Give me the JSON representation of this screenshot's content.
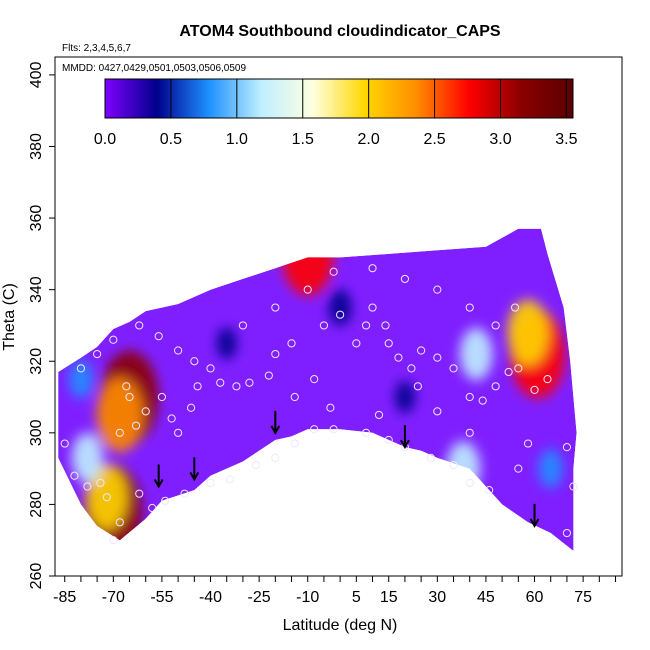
{
  "chart_data": {
    "type": "heatmap",
    "title": "ATOM4 Southbound cloudindicator_CAPS",
    "flights_note": "Flts: 2,3,4,5,6,7",
    "dates_note": "MMDD: 0427,0429,0501,0503,0506,0509",
    "xlabel": "Latitude (deg N)",
    "ylabel": "Theta (C)",
    "xlim": [
      -88,
      87
    ],
    "ylim": [
      260,
      405
    ],
    "x_ticks": [
      -85,
      -70,
      -55,
      -40,
      -25,
      -10,
      5,
      15,
      30,
      45,
      60,
      75
    ],
    "y_ticks": [
      260,
      280,
      300,
      320,
      340,
      360,
      380,
      400
    ],
    "colorbar": {
      "range": [
        0,
        3.55
      ],
      "ticks": [
        "0.0",
        "0.5",
        "1.0",
        "1.5",
        "2.0",
        "2.5",
        "3.0",
        "3.5"
      ],
      "colors": [
        "#7f00ff",
        "#00008b",
        "#1e90ff",
        "#bfefff",
        "#ffffe0",
        "#ffd700",
        "#ff8c00",
        "#ff0000",
        "#8b0000",
        "#5a0000"
      ]
    },
    "envelope_top": [
      [
        -87,
        317
      ],
      [
        -80,
        321
      ],
      [
        -75,
        324
      ],
      [
        -70,
        329
      ],
      [
        -65,
        331
      ],
      [
        -60,
        334
      ],
      [
        -50,
        336
      ],
      [
        -40,
        340
      ],
      [
        -30,
        343
      ],
      [
        -20,
        346
      ],
      [
        -10,
        349
      ],
      [
        0,
        349
      ],
      [
        15,
        350
      ],
      [
        30,
        351
      ],
      [
        45,
        352
      ],
      [
        55,
        357
      ],
      [
        62,
        357
      ],
      [
        64,
        350
      ],
      [
        69,
        335
      ],
      [
        71,
        320
      ],
      [
        73,
        300
      ],
      [
        72,
        290
      ],
      [
        72,
        267
      ]
    ],
    "envelope_bottom": [
      [
        72,
        267
      ],
      [
        65,
        272
      ],
      [
        58,
        275
      ],
      [
        50,
        280
      ],
      [
        45,
        285
      ],
      [
        40,
        290
      ],
      [
        30,
        293
      ],
      [
        25,
        295
      ],
      [
        20,
        296
      ],
      [
        10,
        300
      ],
      [
        0,
        301
      ],
      [
        -5,
        301
      ],
      [
        -10,
        301
      ],
      [
        -15,
        299
      ],
      [
        -20,
        298
      ],
      [
        -30,
        292
      ],
      [
        -40,
        288
      ],
      [
        -45,
        284
      ],
      [
        -55,
        281
      ],
      [
        -60,
        276
      ],
      [
        -68,
        270
      ],
      [
        -75,
        274
      ],
      [
        -80,
        280
      ],
      [
        -87,
        293
      ]
    ],
    "cells": [
      {
        "lat": -65,
        "theta": 310,
        "value": 3.0
      },
      {
        "lat": -68,
        "theta": 305,
        "value": 2.2
      },
      {
        "lat": -70,
        "theta": 278,
        "value": 3.0
      },
      {
        "lat": -72,
        "theta": 282,
        "value": 1.8
      },
      {
        "lat": 61,
        "theta": 322,
        "value": 2.8
      },
      {
        "lat": 58,
        "theta": 328,
        "value": 1.8
      },
      {
        "lat": -10,
        "theta": 350,
        "value": 2.6
      },
      {
        "lat": 42,
        "theta": 322,
        "value": 1.2
      },
      {
        "lat": 38,
        "theta": 290,
        "value": 1.3
      },
      {
        "lat": -78,
        "theta": 293,
        "value": 1.1
      },
      {
        "lat": -80,
        "theta": 315,
        "value": 0.6
      },
      {
        "lat": -35,
        "theta": 325,
        "value": 0.3
      },
      {
        "lat": 20,
        "theta": 310,
        "value": 0.3
      },
      {
        "lat": 0,
        "theta": 335,
        "value": 0.5
      },
      {
        "lat": 65,
        "theta": 290,
        "value": 0.6
      }
    ],
    "observations": [
      [
        -70,
        270
      ],
      [
        -68,
        275
      ],
      [
        -72,
        282
      ],
      [
        -74,
        286
      ],
      [
        -78,
        285
      ],
      [
        -82,
        288
      ],
      [
        -85,
        297
      ],
      [
        -65,
        310
      ],
      [
        -66,
        313
      ],
      [
        -68,
        300
      ],
      [
        -63,
        302
      ],
      [
        -60,
        306
      ],
      [
        -55,
        310
      ],
      [
        -52,
        304
      ],
      [
        -50,
        300
      ],
      [
        -46,
        307
      ],
      [
        -44,
        313
      ],
      [
        -40,
        318
      ],
      [
        -37,
        314
      ],
      [
        -32,
        313
      ],
      [
        -28,
        314
      ],
      [
        -22,
        316
      ],
      [
        -20,
        322
      ],
      [
        -15,
        325
      ],
      [
        -5,
        330
      ],
      [
        0,
        333
      ],
      [
        8,
        330
      ],
      [
        15,
        325
      ],
      [
        18,
        321
      ],
      [
        22,
        318
      ],
      [
        25,
        323
      ],
      [
        30,
        321
      ],
      [
        35,
        318
      ],
      [
        40,
        310
      ],
      [
        44,
        309
      ],
      [
        48,
        313
      ],
      [
        52,
        317
      ],
      [
        55,
        318
      ],
      [
        60,
        312
      ],
      [
        64,
        315
      ],
      [
        70,
        296
      ],
      [
        72,
        285
      ],
      [
        70,
        272
      ],
      [
        58,
        297
      ],
      [
        55,
        290
      ],
      [
        46,
        284
      ],
      [
        40,
        286
      ],
      [
        35,
        291
      ],
      [
        28,
        293
      ],
      [
        20,
        296
      ],
      [
        15,
        298
      ],
      [
        8,
        300
      ],
      [
        -2,
        301
      ],
      [
        -8,
        301
      ],
      [
        -14,
        297
      ],
      [
        -20,
        293
      ],
      [
        -26,
        291
      ],
      [
        -34,
        287
      ],
      [
        -40,
        286
      ],
      [
        -48,
        283
      ],
      [
        -54,
        281
      ],
      [
        -58,
        279
      ],
      [
        -62,
        283
      ],
      [
        -80,
        318
      ],
      [
        -75,
        322
      ],
      [
        -70,
        326
      ],
      [
        -62,
        330
      ],
      [
        -56,
        327
      ],
      [
        -50,
        323
      ],
      [
        -45,
        320
      ],
      [
        -30,
        330
      ],
      [
        -20,
        335
      ],
      [
        -10,
        340
      ],
      [
        -2,
        345
      ],
      [
        10,
        346
      ],
      [
        20,
        343
      ],
      [
        30,
        340
      ],
      [
        40,
        335
      ],
      [
        48,
        330
      ],
      [
        54,
        335
      ],
      [
        10,
        335
      ],
      [
        14,
        330
      ],
      [
        5,
        325
      ],
      [
        -8,
        315
      ],
      [
        -14,
        310
      ],
      [
        -3,
        307
      ],
      [
        12,
        305
      ],
      [
        24,
        313
      ],
      [
        30,
        306
      ],
      [
        40,
        300
      ]
    ],
    "arrows": [
      [
        -56,
        285
      ],
      [
        -45,
        287
      ],
      [
        -20,
        300
      ],
      [
        20,
        296
      ],
      [
        60,
        274
      ]
    ]
  }
}
